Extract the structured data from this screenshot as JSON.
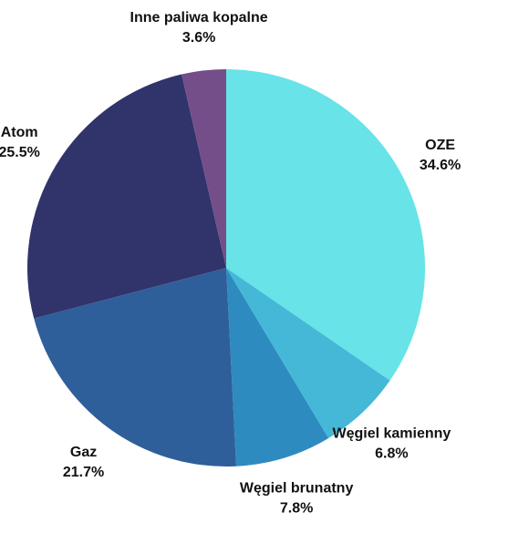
{
  "chart_data": {
    "type": "pie",
    "categories": [
      "OZE",
      "Węgiel kamienny",
      "Węgiel brunatny",
      "Gaz",
      "Atom",
      "Inne paliwa kopalne"
    ],
    "values": [
      34.6,
      6.8,
      7.8,
      21.7,
      25.5,
      3.6
    ],
    "value_labels": [
      "34.6%",
      "6.8%",
      "7.8%",
      "21.7%",
      "25.5%",
      "3.6%"
    ],
    "colors": [
      "#68e3e8",
      "#45b8d8",
      "#2e8bbf",
      "#2f5f9a",
      "#31336b",
      "#744e88"
    ]
  }
}
